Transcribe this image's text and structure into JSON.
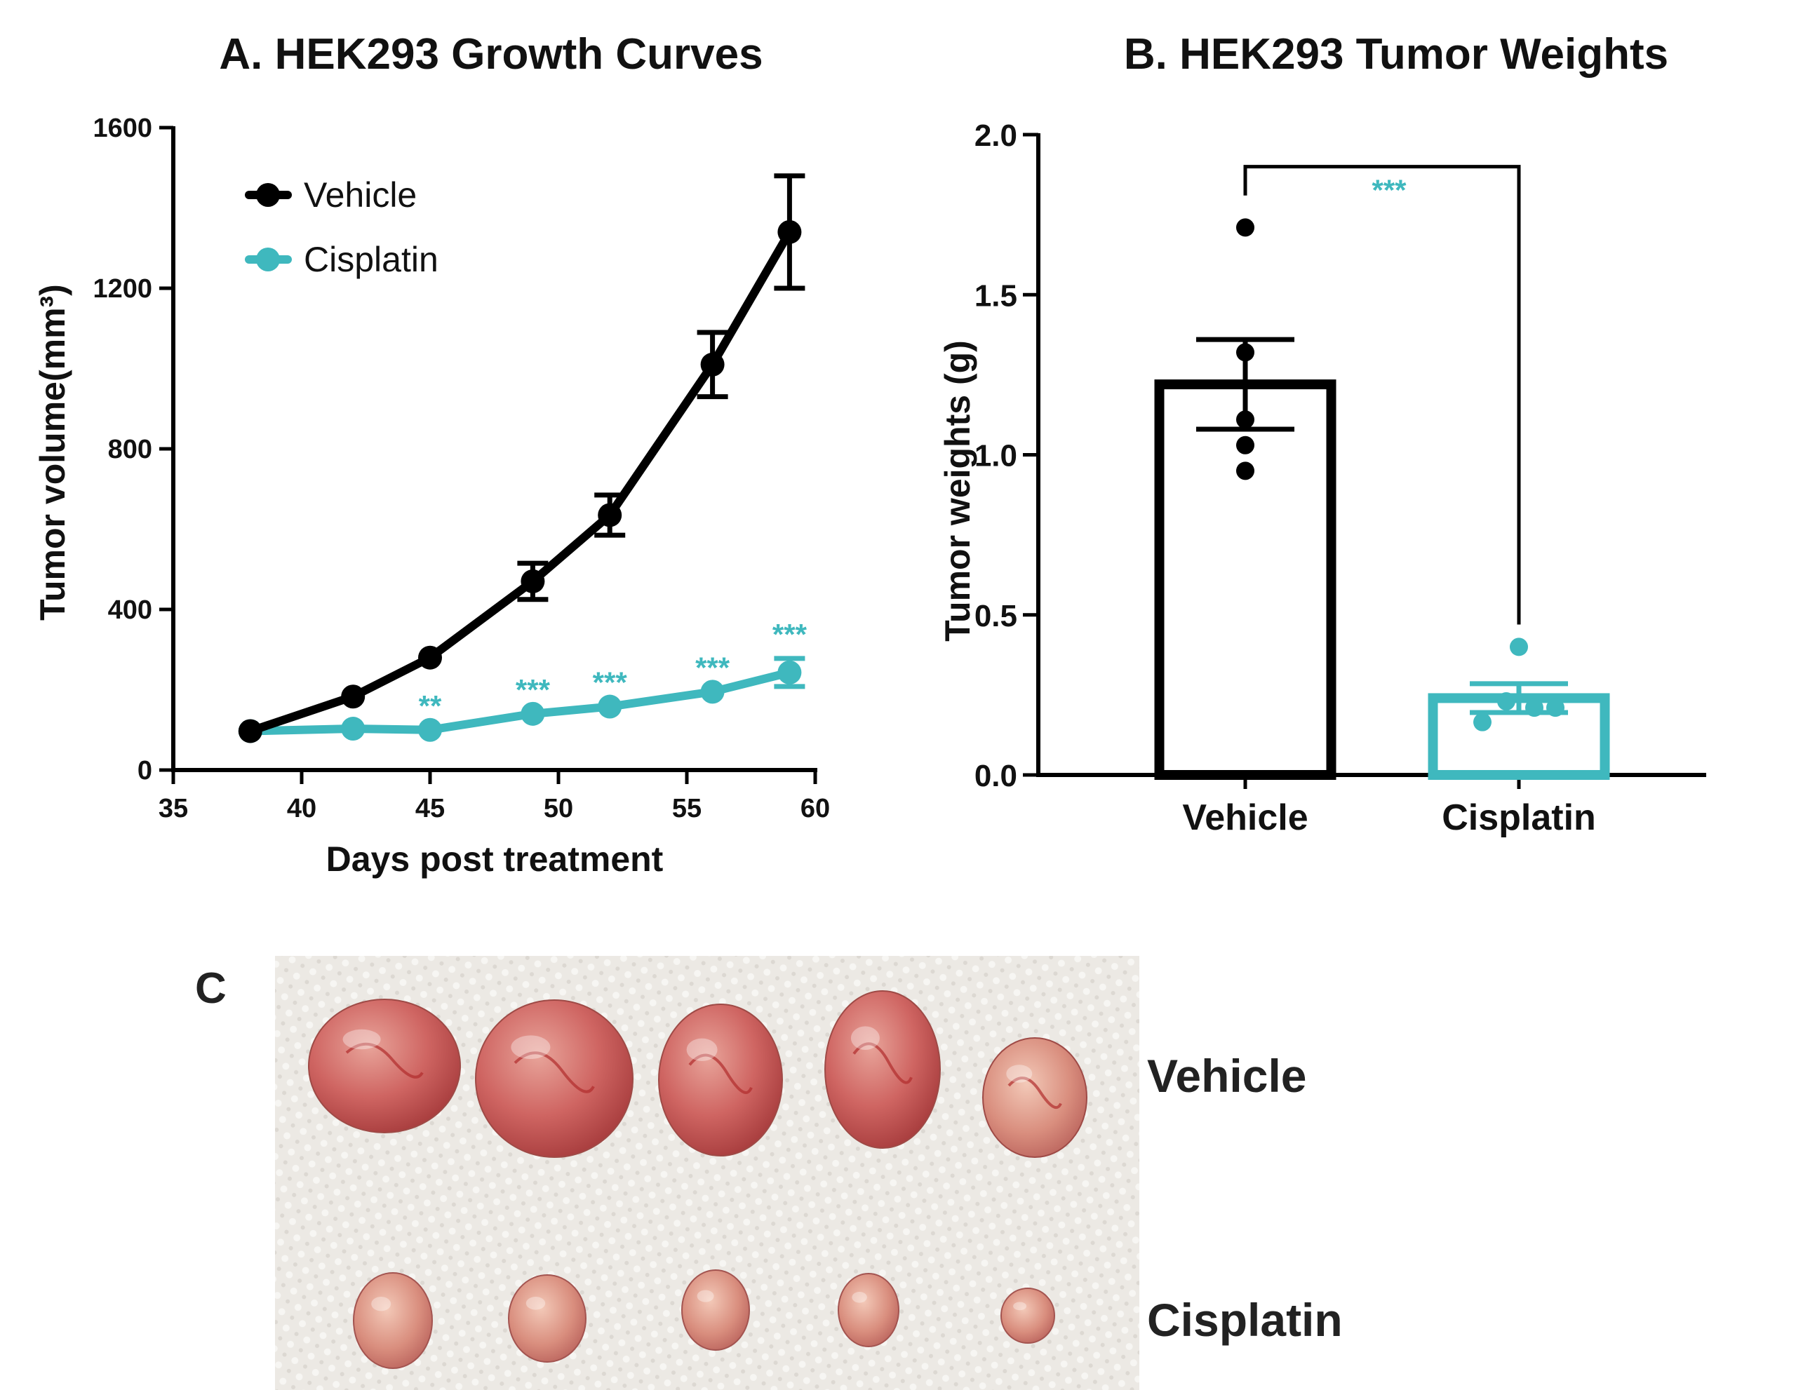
{
  "panel_c": {
    "label": "C",
    "row_labels": [
      "Vehicle",
      "Cisplatin"
    ]
  },
  "colors": {
    "vehicle": "#000000",
    "cisplatin": "#3fb8be",
    "towel": "#ece9e4",
    "tumor": "#c85a58"
  },
  "chart_data": [
    {
      "type": "line",
      "title": "A.  HEK293 Growth Curves",
      "xlabel": "Days post treatment",
      "ylabel": "Tumor volume(mm³)",
      "xlim": [
        35,
        60
      ],
      "ylim": [
        0,
        1600
      ],
      "xticks": [
        "35",
        "40",
        "45",
        "50",
        "55",
        "60"
      ],
      "yticks": [
        "0",
        "400",
        "800",
        "1200",
        "1600"
      ],
      "legend_position": "top-left",
      "grid": false,
      "series": [
        {
          "name": "Vehicle",
          "x": [
            38,
            42,
            45,
            49,
            52,
            56,
            59
          ],
          "y": [
            97,
            183,
            280,
            470,
            635,
            1010,
            1340
          ],
          "error": [
            0,
            0,
            0,
            45,
            50,
            80,
            140
          ]
        },
        {
          "name": "Cisplatin",
          "x": [
            38,
            42,
            45,
            49,
            52,
            56,
            59
          ],
          "y": [
            97,
            103,
            100,
            140,
            158,
            195,
            243
          ],
          "error": [
            0,
            0,
            0,
            0,
            0,
            0,
            35
          ]
        }
      ],
      "annotations": [
        {
          "x": 45,
          "text": "**"
        },
        {
          "x": 49,
          "text": "***"
        },
        {
          "x": 52,
          "text": "***"
        },
        {
          "x": 56,
          "text": "***"
        },
        {
          "x": 59,
          "text": "***"
        }
      ]
    },
    {
      "type": "bar",
      "title": "B.  HEK293 Tumor Weights",
      "xlabel": "",
      "ylabel": "Tumor weights (g)",
      "ylim": [
        0,
        2.0
      ],
      "yticks": [
        "0.0",
        "0.5",
        "1.0",
        "1.5",
        "2.0"
      ],
      "categories": [
        "Vehicle",
        "Cisplatin"
      ],
      "values": [
        1.22,
        0.24
      ],
      "sem": [
        0.14,
        0.045
      ],
      "points": [
        [
          1.71,
          1.32,
          1.11,
          1.03,
          0.95
        ],
        [
          0.4,
          0.23,
          0.21,
          0.21,
          0.165
        ]
      ],
      "significance": "***"
    }
  ]
}
